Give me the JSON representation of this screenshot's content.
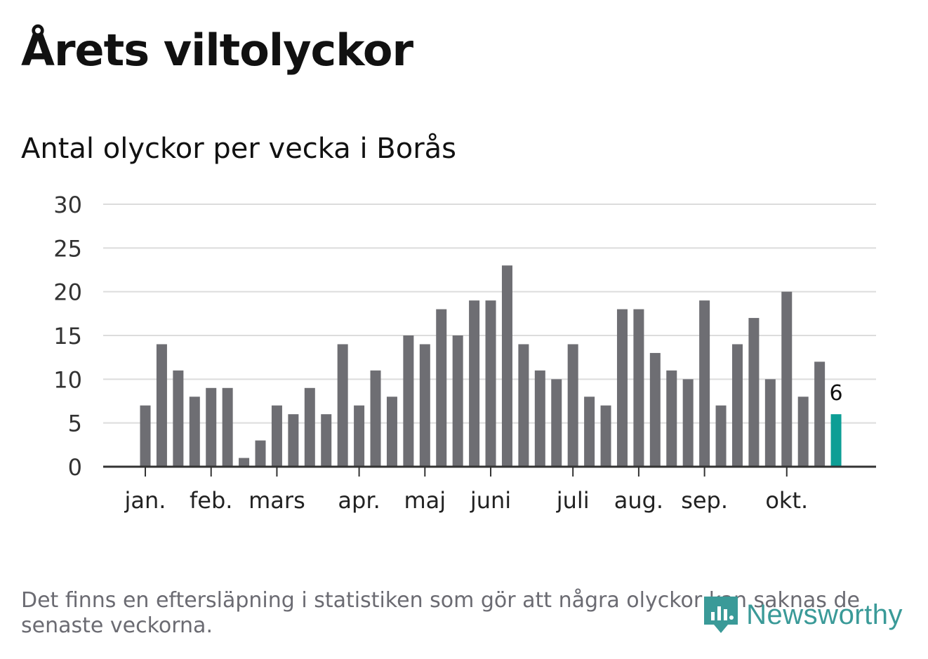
{
  "header": {
    "title": "Årets viltolyckor",
    "subtitle": "Antal olyckor per vecka i Borås"
  },
  "footnote": "Det finns en eftersläpning i statistiken som gör att några olyckor kan saknas de senaste veckorna.",
  "brand": {
    "name": "Newsworthy",
    "icon": "newsworthy-logo-icon",
    "color": "#3a9a98"
  },
  "colors": {
    "bar": "#6e6e73",
    "highlight": "#0d9e95",
    "grid": "#dcdcdc",
    "axis": "#333333"
  },
  "chart_data": {
    "type": "bar",
    "title": "Antal olyckor per vecka i Borås",
    "xlabel": "",
    "ylabel": "",
    "ylim": [
      0,
      30
    ],
    "yticks": [
      0,
      5,
      10,
      15,
      20,
      25,
      30
    ],
    "grid": true,
    "values": [
      7,
      14,
      11,
      8,
      9,
      9,
      1,
      3,
      7,
      6,
      9,
      6,
      14,
      7,
      11,
      8,
      15,
      14,
      18,
      15,
      19,
      19,
      23,
      14,
      11,
      10,
      14,
      8,
      7,
      18,
      18,
      13,
      11,
      10,
      19,
      7,
      14,
      17,
      10,
      20,
      8,
      12,
      6
    ],
    "highlight_index": 42,
    "highlight_label": "6",
    "month_labels": [
      {
        "label": "jan.",
        "week_index": 0
      },
      {
        "label": "feb.",
        "week_index": 4
      },
      {
        "label": "mars",
        "week_index": 8
      },
      {
        "label": "apr.",
        "week_index": 13
      },
      {
        "label": "maj",
        "week_index": 17
      },
      {
        "label": "juni",
        "week_index": 21
      },
      {
        "label": "juli",
        "week_index": 26
      },
      {
        "label": "aug.",
        "week_index": 30
      },
      {
        "label": "sep.",
        "week_index": 34
      },
      {
        "label": "okt.",
        "week_index": 39
      }
    ]
  }
}
